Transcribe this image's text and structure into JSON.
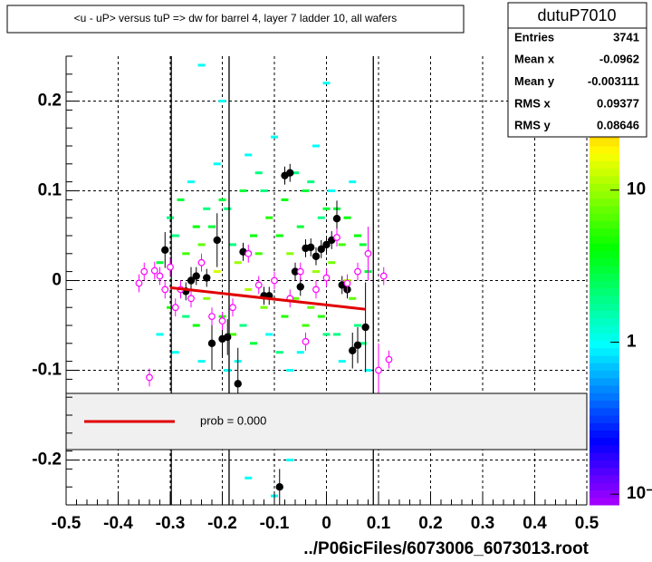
{
  "chart_data": {
    "type": "scatter",
    "title": "<u - uP>       versus  tuP =>  dw for barrel 4, layer 7 ladder 10, all wafers",
    "x_label": "../P06icFiles/6073006_6073013.root",
    "xlim": [
      -0.5,
      0.5
    ],
    "ylim": [
      -0.25,
      0.25
    ],
    "xticks": [
      -0.5,
      -0.4,
      -0.3,
      -0.2,
      -0.1,
      0,
      0.1,
      0.2,
      0.3,
      0.4,
      0.5
    ],
    "yticks": [
      -0.2,
      -0.1,
      0,
      0.1,
      0.2
    ],
    "grid": true,
    "zlog": true,
    "zlim": [
      0.085,
      76
    ],
    "zticks": [
      {
        "value": 0.1,
        "label": "10⁻¹"
      },
      1,
      10
    ],
    "cells": {
      "x": [
        -0.32,
        -0.3,
        -0.29,
        -0.28,
        -0.27,
        -0.26,
        -0.25,
        -0.24,
        -0.23,
        -0.22,
        -0.21,
        -0.2,
        -0.19,
        -0.18,
        -0.17,
        -0.16,
        -0.15,
        -0.14,
        -0.13,
        -0.12,
        -0.11,
        -0.1,
        -0.09,
        -0.08,
        -0.07,
        -0.06,
        -0.05,
        -0.04,
        -0.03,
        -0.02,
        -0.01,
        0,
        0.01,
        0.02,
        0.03,
        0.04,
        0.05,
        0.06,
        0.07,
        0.08,
        -0.32,
        -0.3,
        -0.29,
        -0.28,
        -0.27,
        -0.26,
        -0.25,
        -0.24,
        -0.23,
        -0.22,
        -0.21,
        -0.2,
        -0.19,
        -0.18,
        -0.17,
        -0.16,
        -0.15,
        -0.14,
        -0.13,
        -0.12,
        -0.11,
        -0.1,
        -0.09,
        -0.08,
        -0.07,
        -0.06,
        -0.05,
        -0.04,
        -0.03,
        -0.02,
        -0.01,
        0,
        0.01,
        0.02,
        0.03,
        0.04,
        0.05,
        0.06,
        0.07,
        0.08,
        -0.24,
        -0.2,
        -0.15,
        -0.1,
        -0.07,
        0
      ],
      "y": [
        0.02,
        -0.03,
        0.05,
        -0.01,
        0.03,
        0,
        -0.05,
        0.04,
        -0.02,
        0.06,
        0.01,
        -0.04,
        0.08,
        -0.06,
        0.02,
        0.1,
        -0.01,
        0.05,
        0.12,
        -0.03,
        0.07,
        0,
        -0.08,
        0.09,
        0.03,
        -0.02,
        0.06,
        -0.05,
        0.11,
        0.01,
        -0.04,
        0.08,
        0.02,
        -0.06,
        0.04,
        0,
        -0.02,
        0.05,
        -0.07,
        0.01,
        -0.06,
        0.07,
        -0.08,
        0.09,
        -0.04,
        0.11,
        0.06,
        -0.09,
        0.08,
        -0.07,
        0.13,
        0.09,
        -0.1,
        0.04,
        -0.09,
        -0.05,
        0.14,
        -0.07,
        0.03,
        0.1,
        -0.06,
        0.16,
        0.05,
        -0.04,
        -0.1,
        0.12,
        -0.08,
        0.1,
        -0.03,
        0.15,
        0.07,
        -0.06,
        0.1,
        0.08,
        -0.09,
        0.07,
        0.11,
        -0.05,
        0.04,
        -0.1,
        0.24,
        0.2,
        -0.22,
        -0.24,
        -0.2,
        0.22
      ],
      "z": [
        3,
        5,
        2,
        8,
        6,
        12,
        4,
        7,
        9,
        3,
        14,
        5,
        2,
        6,
        10,
        3,
        11,
        4,
        2,
        8,
        5,
        13,
        2,
        4,
        9,
        7,
        3,
        6,
        2,
        10,
        5,
        3,
        8,
        2,
        6,
        12,
        7,
        4,
        2,
        3,
        1,
        2,
        1,
        3,
        2,
        1,
        4,
        1,
        2,
        1,
        1,
        3,
        1,
        2,
        1,
        2,
        1,
        3,
        6,
        2,
        1,
        1,
        4,
        5,
        1,
        2,
        1,
        3,
        7,
        1,
        2,
        2,
        1,
        3,
        1,
        4,
        1,
        2,
        3,
        1,
        1,
        1,
        1,
        1,
        1,
        1
      ]
    },
    "vlines": [
      -0.298,
      -0.187,
      0.09
    ],
    "series": [
      {
        "color": "#000000",
        "marker": "filled",
        "x": [
          -0.31,
          -0.27,
          -0.26,
          -0.25,
          -0.23,
          -0.22,
          -0.21,
          -0.2,
          -0.19,
          -0.17,
          -0.16,
          -0.12,
          -0.11,
          -0.09,
          -0.08,
          -0.07,
          -0.06,
          -0.05,
          -0.04,
          -0.03,
          -0.02,
          -0.01,
          0,
          0.01,
          0.02,
          0.03,
          0.04,
          0.05,
          0.06,
          0.075
        ],
        "values": [
          0.034,
          -0.012,
          0,
          0.005,
          0.003,
          -0.07,
          0.045,
          -0.065,
          -0.063,
          -0.115,
          0.032,
          -0.017,
          -0.017,
          -0.23,
          0.117,
          0.12,
          0.01,
          -0.007,
          0.036,
          0.037,
          0.027,
          0.035,
          0.04,
          0.045,
          0.069,
          -0.005,
          -0.01,
          -0.078,
          -0.072,
          -0.052
        ],
        "errors": [
          0.02,
          0.01,
          0.015,
          0.01,
          0.01,
          0.03,
          0.03,
          0.02,
          0.02,
          0.04,
          0.01,
          0.01,
          0.01,
          0.02,
          0.01,
          0.01,
          0.01,
          0.01,
          0.01,
          0.01,
          0.01,
          0.01,
          0.01,
          0.01,
          0.02,
          0.01,
          0.01,
          0.02,
          0.02,
          0.05
        ]
      },
      {
        "color": "#ff00ff",
        "marker": "open",
        "x": [
          -0.36,
          -0.35,
          -0.34,
          -0.33,
          -0.32,
          -0.31,
          -0.3,
          -0.29,
          -0.28,
          -0.26,
          -0.24,
          -0.22,
          -0.2,
          -0.18,
          -0.15,
          -0.13,
          -0.1,
          -0.07,
          -0.05,
          -0.04,
          -0.02,
          0,
          0.02,
          0.04,
          0.06,
          0.08,
          0.1,
          0.11,
          0.12
        ],
        "values": [
          -0.003,
          0.01,
          -0.108,
          0.011,
          0.005,
          -0.01,
          0.015,
          -0.03,
          -0.01,
          -0.02,
          0.02,
          -0.04,
          -0.045,
          -0.03,
          0.03,
          -0.005,
          0,
          -0.02,
          0.01,
          -0.068,
          -0.01,
          0.003,
          0.048,
          -0.003,
          0.01,
          0.03,
          -0.1,
          0.005,
          -0.088
        ],
        "errors": [
          0.01,
          0.01,
          0.01,
          0.01,
          0.01,
          0.01,
          0.01,
          0.01,
          0.01,
          0.01,
          0.01,
          0.01,
          0.01,
          0.01,
          0.01,
          0.01,
          0.01,
          0.01,
          0.01,
          0.01,
          0.01,
          0.01,
          0.01,
          0.01,
          0.01,
          0.03,
          0.03,
          0.01,
          0.01
        ]
      }
    ],
    "fit": {
      "x": [
        -0.3,
        0.075
      ],
      "y": [
        -0.008,
        -0.032
      ],
      "color": "#e00000"
    },
    "legend": {
      "label": "prob = 0.000"
    },
    "stats": {
      "name": "dutuP7010",
      "rows": [
        {
          "label": "Entries",
          "value": 3741
        },
        {
          "label": "Mean x",
          "value": -0.0962
        },
        {
          "label": "Mean y",
          "value": -0.003111
        },
        {
          "label": "RMS x",
          "value": 0.09377
        },
        {
          "label": "RMS y",
          "value": 0.08646
        }
      ]
    }
  }
}
